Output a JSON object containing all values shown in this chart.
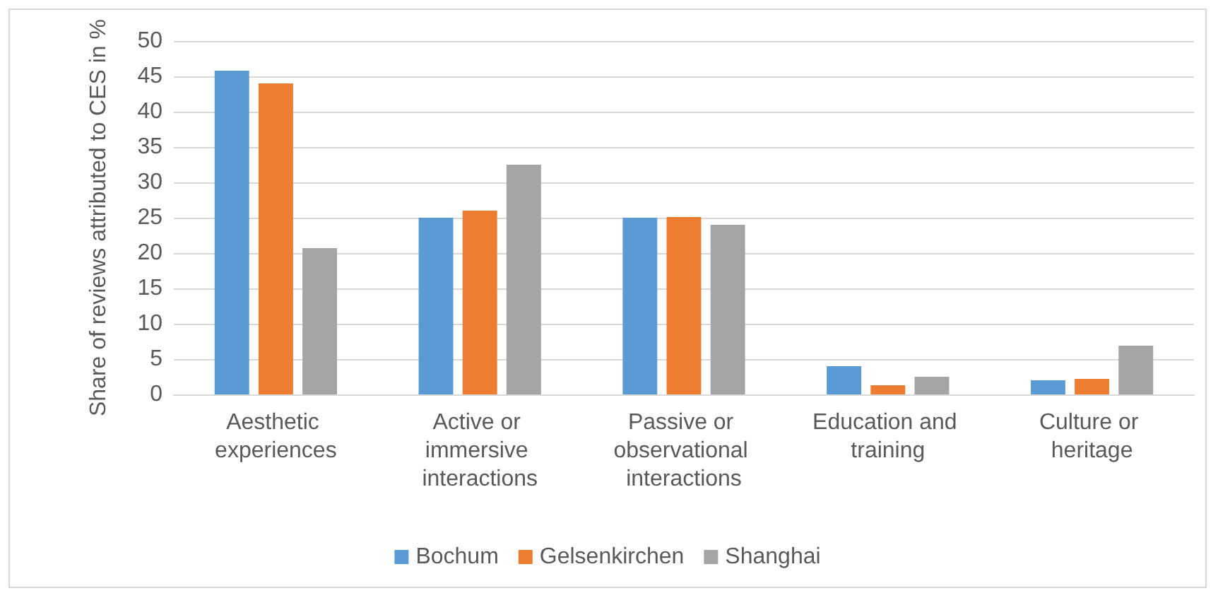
{
  "chart_data": {
    "type": "bar",
    "ylabel": "Share of reviews attributed to CES in %",
    "categories": [
      "Aesthetic experiences",
      "Active or immersive interactions",
      "Passive or observational interactions",
      "Education and training",
      "Culture or heritage"
    ],
    "series": [
      {
        "name": "Bochum",
        "color": "#5b9bd5",
        "values": [
          45.8,
          25,
          25,
          4,
          2
        ]
      },
      {
        "name": "Gelsenkirchen",
        "color": "#ed7d31",
        "values": [
          44,
          26,
          25.1,
          1.3,
          2.2
        ]
      },
      {
        "name": "Shanghai",
        "color": "#a5a5a5",
        "values": [
          20.7,
          32.5,
          24,
          2.5,
          6.9
        ]
      }
    ],
    "ylim": [
      0,
      50
    ],
    "yticks": [
      0,
      5,
      10,
      15,
      20,
      25,
      30,
      35,
      40,
      45,
      50
    ],
    "grid": "y",
    "legend": "bottom"
  }
}
